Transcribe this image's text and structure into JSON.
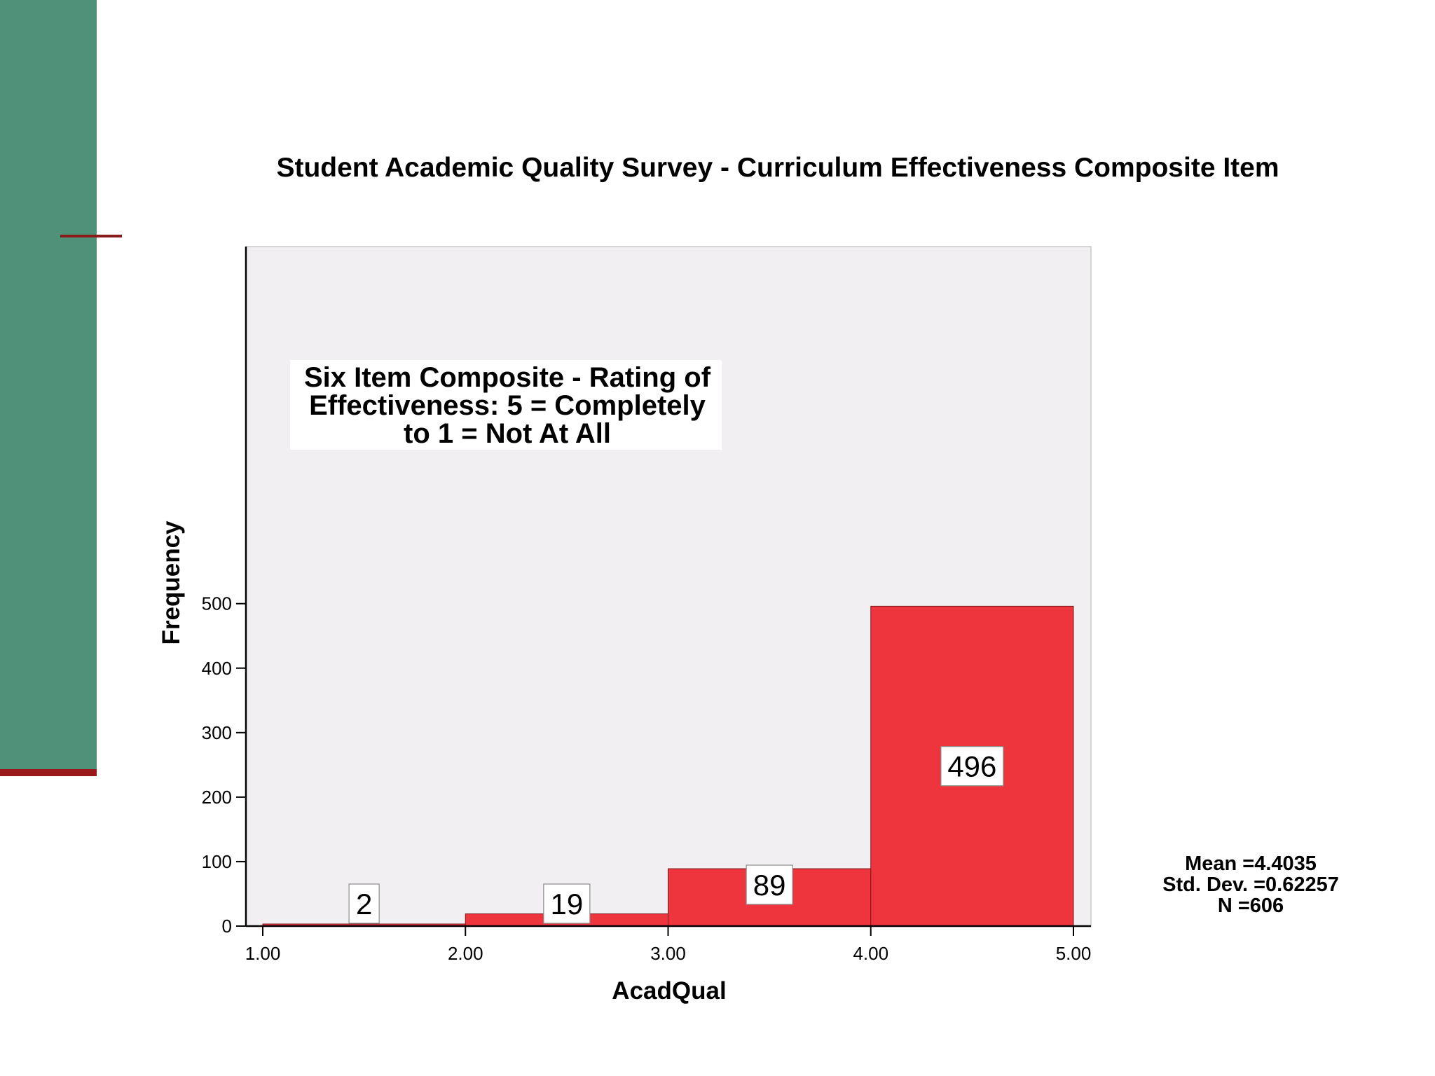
{
  "theme": {
    "band_color": "#4f927a",
    "band_rule_color": "#9a1a1a",
    "bar_color": "#ee343c",
    "plot_background": "#f1eff1"
  },
  "chart_data": {
    "type": "bar",
    "title": "Student Academic Quality Survey - Curriculum Effectiveness Composite Item",
    "xlabel": "AcadQual",
    "ylabel": "Frequency",
    "bins": [
      {
        "from": 1.0,
        "to": 2.0,
        "value": 2,
        "label": "2"
      },
      {
        "from": 2.0,
        "to": 3.0,
        "value": 19,
        "label": "19"
      },
      {
        "from": 3.0,
        "to": 4.0,
        "value": 89,
        "label": "89"
      },
      {
        "from": 4.0,
        "to": 5.0,
        "value": 496,
        "label": "496"
      }
    ],
    "xlim": [
      1.0,
      5.0
    ],
    "ylim": [
      0,
      500
    ],
    "x_ticks": [
      "1.00",
      "2.00",
      "3.00",
      "4.00",
      "5.00"
    ],
    "y_ticks": [
      "0",
      "100",
      "200",
      "300",
      "400",
      "500"
    ],
    "grid": false,
    "legend": "none",
    "annotation": {
      "lines": [
        "Six Item Composite - Rating of",
        "Effectiveness: 5 = Completely",
        "to 1 = Not At All"
      ]
    },
    "stats": {
      "mean": "Mean =4.4035",
      "std_dev": "Std. Dev. =0.62257",
      "n": "N =606"
    }
  }
}
